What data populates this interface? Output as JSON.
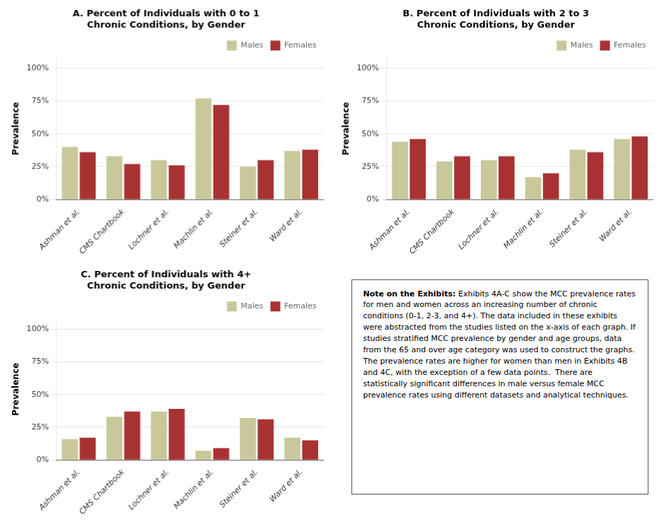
{
  "chart_data": [
    {
      "type": "bar",
      "title": "A. Percent of Individuals with 0 to 1\nChronic Conditions, by Gender",
      "categories": [
        "Ashman et al.",
        "CMS Chartbook",
        "Lochner et al.",
        "Machlin et al.",
        "Steiner et al.",
        "Ward et al."
      ],
      "series": [
        {
          "name": "Males",
          "color": "#c8c89a",
          "values": [
            0.4,
            0.33,
            0.3,
            0.77,
            0.25,
            0.37
          ]
        },
        {
          "name": "Females",
          "color": "#a83232",
          "values": [
            0.36,
            0.27,
            0.26,
            0.72,
            0.3,
            0.38
          ]
        }
      ],
      "ylabel": "Prevalence",
      "ylim": [
        0,
        1.08
      ],
      "yticks": [
        {
          "value": 0.0,
          "label": "0%"
        },
        {
          "value": 0.25,
          "label": "25%"
        },
        {
          "value": 0.5,
          "label": "50%"
        },
        {
          "value": 0.75,
          "label": "75%"
        },
        {
          "value": 1.0,
          "label": "100%"
        }
      ],
      "grid": true,
      "legend": "upper right"
    },
    {
      "type": "bar",
      "title": "B. Percent of Individuals with 2 to 3\nChronic Conditions, by Gender",
      "categories": [
        "Ashman et al.",
        "CMS Chartbook",
        "Lochner et al.",
        "Machlin et al.",
        "Steiner et al.",
        "Ward et al."
      ],
      "series": [
        {
          "name": "Males",
          "color": "#c8c89a",
          "values": [
            0.44,
            0.29,
            0.3,
            0.17,
            0.38,
            0.46
          ]
        },
        {
          "name": "Females",
          "color": "#a83232",
          "values": [
            0.46,
            0.33,
            0.33,
            0.2,
            0.36,
            0.48
          ]
        }
      ],
      "ylabel": "Prevalence",
      "ylim": [
        0,
        1.08
      ],
      "yticks": [
        {
          "value": 0.0,
          "label": "0%"
        },
        {
          "value": 0.25,
          "label": "25%"
        },
        {
          "value": 0.5,
          "label": "50%"
        },
        {
          "value": 0.75,
          "label": "75%"
        },
        {
          "value": 1.0,
          "label": "100%"
        }
      ],
      "grid": true,
      "legend": "upper right"
    },
    {
      "type": "bar",
      "title": "C. Percent of Individuals with 4+\nChronic Conditions, by Gender",
      "categories": [
        "Ashman et al.",
        "CMS Chartbook",
        "Lochner et al.",
        "Machlin et al.",
        "Steiner et al.",
        "Ward et al."
      ],
      "series": [
        {
          "name": "Males",
          "color": "#c8c89a",
          "values": [
            0.16,
            0.33,
            0.37,
            0.07,
            0.32,
            0.17
          ]
        },
        {
          "name": "Females",
          "color": "#a83232",
          "values": [
            0.17,
            0.37,
            0.39,
            0.09,
            0.31,
            0.15
          ]
        }
      ],
      "ylabel": "Prevalence",
      "ylim": [
        0,
        1.08
      ],
      "yticks": [
        {
          "value": 0.0,
          "label": "0%"
        },
        {
          "value": 0.25,
          "label": "25%"
        },
        {
          "value": 0.5,
          "label": "50%"
        },
        {
          "value": 0.75,
          "label": "75%"
        },
        {
          "value": 1.0,
          "label": "100%"
        }
      ],
      "grid": true,
      "legend": "upper right"
    }
  ],
  "note": {
    "title": "Note on the Exhibits:",
    "text": " Exhibits 4A-C show the MCC prevalence rates for men and women across an increasing number of chronic conditions (0-1, 2-3, and 4+). The data included in these exhibits were abstracted from the studies listed on the x-axis of each graph. If studies stratified MCC prevalence by gender and age groups, data from the 65 and over age category was used to construct the graphs.  The prevalence rates are higher for women than men in Exhibits 4B and 4C, with the exception of a few data points.  There are statistically significant differences in male versus female MCC prevalence rates using different datasets and analytical techniques."
  }
}
